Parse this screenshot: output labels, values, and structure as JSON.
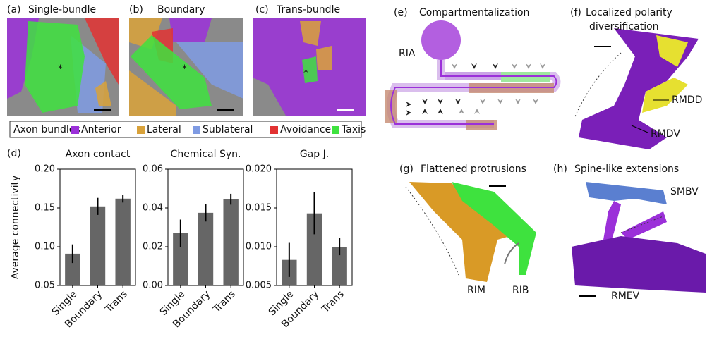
{
  "panels": [
    {
      "label": "(a)",
      "title_lines": [
        "Single-bundle"
      ]
    },
    {
      "label": "(b)",
      "title_lines": [
        "Boundary"
      ]
    },
    {
      "label": "(c)",
      "title_lines": [
        "Trans-bundle"
      ]
    },
    {
      "label": "(d)",
      "title_lines": []
    },
    {
      "label": "(e)",
      "title_lines": [
        "Compartmentalization"
      ]
    },
    {
      "label": "(f)",
      "title_lines": [
        "Localized polarity",
        "diversification"
      ]
    },
    {
      "label": "(g)",
      "title_lines": [
        "Flattened protrusions"
      ]
    },
    {
      "label": "(h)",
      "title_lines": [
        "Spine-like extensions"
      ]
    }
  ],
  "legend": {
    "title": "Axon bundles",
    "items": [
      {
        "name": "Anterior",
        "color": "#9b30d9"
      },
      {
        "name": "Lateral",
        "color": "#d9a23a"
      },
      {
        "name": "Sublateral",
        "color": "#7f9be3"
      },
      {
        "name": "Avoidance",
        "color": "#e23232"
      },
      {
        "name": "Taxis",
        "color": "#3ee23e"
      }
    ]
  },
  "annotations": [
    "*",
    "*",
    "*",
    "RIA",
    "RMDD",
    "RMDV",
    "RIM",
    "RIB",
    "SMBV",
    "RMEV"
  ],
  "chart_data": [
    {
      "type": "bar",
      "title": "Axon contact",
      "ylabel": "Average connectivity",
      "categories": [
        "Single",
        "Boundary",
        "Trans"
      ],
      "values": [
        0.091,
        0.152,
        0.162
      ],
      "errors": [
        0.012,
        0.011,
        0.005
      ],
      "color": "#666666",
      "ylim": [
        0.05,
        0.2
      ],
      "yticks": [
        0.05,
        {
          "value": 0.1,
          "label": "0.10"
        },
        0.15,
        {
          "value": 0.2,
          "label": "0.20"
        }
      ]
    },
    {
      "type": "bar",
      "title": "Chemical Syn.",
      "categories": [
        "Single",
        "Boundary",
        "Trans"
      ],
      "values": [
        0.027,
        0.0375,
        0.0445
      ],
      "errors": [
        0.007,
        0.0045,
        0.0028
      ],
      "color": "#666666",
      "ylim": [
        0,
        0.06
      ],
      "yticks": [
        {
          "value": 0,
          "label": "0.00"
        },
        0.02,
        0.04,
        0.06
      ]
    },
    {
      "type": "bar",
      "title": "Gap J.",
      "categories": [
        "Single",
        "Boundary",
        "Trans"
      ],
      "values": [
        0.0083,
        0.0143,
        0.01
      ],
      "errors": [
        0.0022,
        0.0027,
        0.0011
      ],
      "color": "#666666",
      "ylim": [
        0.005,
        0.02
      ],
      "yticks": [
        0.005,
        {
          "value": 0.01,
          "label": "0.010"
        },
        0.015,
        {
          "value": 0.02,
          "label": "0.020"
        }
      ]
    }
  ]
}
